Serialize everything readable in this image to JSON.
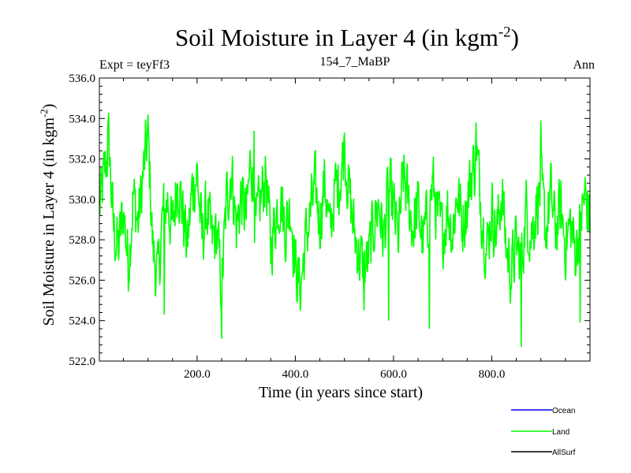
{
  "chart_data": {
    "type": "line",
    "title": "Soil Moisture in Layer 4 (in kgm",
    "title_sup": "-2",
    "title_close": ")",
    "expt_label": "Expt = teyFf3",
    "subtitle": "154_7_MaBP",
    "season": "Ann",
    "xlabel": "Time (in years since start)",
    "ylabel": "Soil Moisture in Layer 4 (in kgm",
    "ylabel_sup": "-2",
    "ylabel_close": ")",
    "xlim": [
      1,
      1000
    ],
    "ylim": [
      522.0,
      536.0
    ],
    "x_ticks": [
      200,
      400,
      600,
      800
    ],
    "x_tick_labels": [
      "200.0",
      "400.0",
      "600.0",
      "800.0"
    ],
    "y_ticks": [
      522,
      524,
      526,
      528,
      530,
      532,
      534,
      536
    ],
    "y_tick_labels": [
      "522.0",
      "524.0",
      "526.0",
      "528.0",
      "530.0",
      "532.0",
      "534.0",
      "536.0"
    ],
    "legend": [
      {
        "name": "Ocean",
        "color": "#0000ff"
      },
      {
        "name": "Land",
        "color": "#00ff00"
      },
      {
        "name": "AllSurf",
        "color": "#000000"
      }
    ],
    "series": [
      {
        "name": "Land",
        "color": "#00ff00",
        "anchors": [
          [
            1,
            529.5
          ],
          [
            10,
            531.0
          ],
          [
            20,
            532.8
          ],
          [
            30,
            528.5
          ],
          [
            40,
            527.5
          ],
          [
            50,
            529.5
          ],
          [
            60,
            526.8
          ],
          [
            70,
            530.2
          ],
          [
            80,
            528.8
          ],
          [
            90,
            531.2
          ],
          [
            100,
            533.2
          ],
          [
            110,
            527.5
          ],
          [
            120,
            526.0
          ],
          [
            130,
            529.2
          ],
          [
            140,
            530.0
          ],
          [
            150,
            528.4
          ],
          [
            160,
            531.2
          ],
          [
            170,
            529.5
          ],
          [
            180,
            527.6
          ],
          [
            190,
            530.5
          ],
          [
            200,
            531.3
          ],
          [
            210,
            528.0
          ],
          [
            220,
            529.6
          ],
          [
            230,
            527.8
          ],
          [
            240,
            528.4
          ],
          [
            250,
            525.5
          ],
          [
            260,
            530.0
          ],
          [
            270,
            531.5
          ],
          [
            280,
            528.6
          ],
          [
            290,
            530.2
          ],
          [
            300,
            529.0
          ],
          [
            310,
            532.2
          ],
          [
            320,
            528.5
          ],
          [
            330,
            530.0
          ],
          [
            340,
            531.3
          ],
          [
            350,
            527.6
          ],
          [
            360,
            529.2
          ],
          [
            370,
            530.2
          ],
          [
            380,
            528.5
          ],
          [
            390,
            529.8
          ],
          [
            400,
            526.8
          ],
          [
            410,
            525.5
          ],
          [
            420,
            527.8
          ],
          [
            430,
            529.2
          ],
          [
            440,
            530.5
          ],
          [
            450,
            529.0
          ],
          [
            460,
            531.0
          ],
          [
            470,
            528.2
          ],
          [
            480,
            530.4
          ],
          [
            490,
            531.0
          ],
          [
            500,
            532.6
          ],
          [
            510,
            530.2
          ],
          [
            520,
            528.4
          ],
          [
            530,
            527.2
          ],
          [
            540,
            526.5
          ],
          [
            550,
            527.2
          ],
          [
            560,
            528.8
          ],
          [
            570,
            529.8
          ],
          [
            580,
            528.0
          ],
          [
            590,
            530.6
          ],
          [
            600,
            529.5
          ],
          [
            610,
            528.0
          ],
          [
            620,
            531.2
          ],
          [
            630,
            529.8
          ],
          [
            640,
            528.6
          ],
          [
            650,
            529.6
          ],
          [
            660,
            527.8
          ],
          [
            670,
            529.2
          ],
          [
            680,
            530.8
          ],
          [
            690,
            529.0
          ],
          [
            700,
            528.2
          ],
          [
            710,
            529.6
          ],
          [
            720,
            528.4
          ],
          [
            730,
            530.4
          ],
          [
            740,
            528.8
          ],
          [
            750,
            529.8
          ],
          [
            760,
            531.5
          ],
          [
            770,
            532.0
          ],
          [
            780,
            529.4
          ],
          [
            790,
            527.4
          ],
          [
            800,
            529.6
          ],
          [
            810,
            528.2
          ],
          [
            820,
            530.4
          ],
          [
            830,
            527.5
          ],
          [
            840,
            526.4
          ],
          [
            850,
            527.8
          ],
          [
            860,
            526.8
          ],
          [
            870,
            529.5
          ],
          [
            880,
            528.2
          ],
          [
            890,
            529.6
          ],
          [
            900,
            530.6
          ],
          [
            910,
            528.4
          ],
          [
            920,
            530.2
          ],
          [
            930,
            528.4
          ],
          [
            940,
            529.6
          ],
          [
            950,
            527.8
          ],
          [
            960,
            528.8
          ],
          [
            970,
            527.4
          ],
          [
            980,
            528.8
          ],
          [
            990,
            530.2
          ],
          [
            1000,
            529.0
          ]
        ],
        "noise_amplitude": 1.5,
        "extremes": [
          [
            18,
            533.6
          ],
          [
            100,
            534.2
          ],
          [
            133,
            524.3
          ],
          [
            250,
            523.1
          ],
          [
            316,
            533.4
          ],
          [
            410,
            524.5
          ],
          [
            500,
            533.3
          ],
          [
            540,
            524.5
          ],
          [
            590,
            524.0
          ],
          [
            673,
            523.6
          ],
          [
            768,
            533.8
          ],
          [
            860,
            522.7
          ],
          [
            900,
            533.9
          ],
          [
            980,
            523.9
          ]
        ]
      }
    ]
  }
}
